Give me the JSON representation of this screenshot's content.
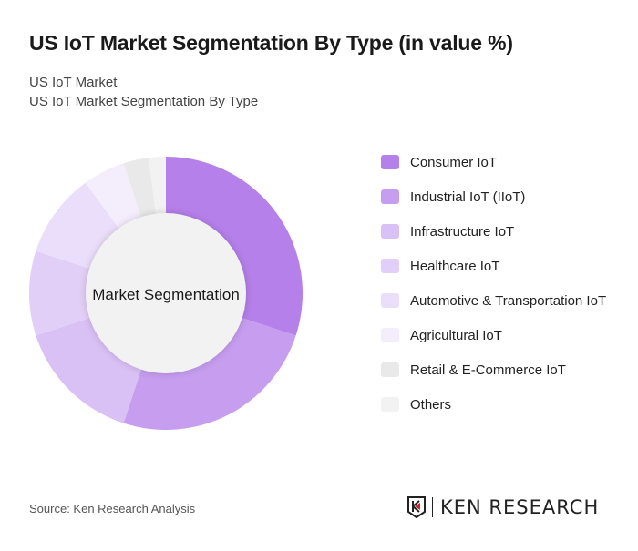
{
  "title": "US IoT Market Segmentation By Type (in value %)",
  "subtitle_lines": [
    "US IoT Market",
    "US IoT Market Segmentation By Type"
  ],
  "chart_data": {
    "type": "pie",
    "variant": "donut",
    "center_label": "Market Segmentation",
    "legend_position": "right",
    "categories": [
      "Consumer IoT",
      "Industrial IoT (IIoT)",
      "Infrastructure IoT",
      "Healthcare IoT",
      "Automotive & Transportation IoT",
      "Agricultural IoT",
      "Retail & E-Commerce IoT",
      "Others"
    ],
    "values": [
      30,
      25,
      15,
      10,
      10,
      5,
      3,
      2
    ],
    "colors": [
      "#b580ea",
      "#c69def",
      "#d9c0f5",
      "#e2cff7",
      "#ebdefa",
      "#f4edfc",
      "#e9e9e9",
      "#f2f2f2"
    ]
  },
  "footer": {
    "source": "Source: Ken Research Analysis",
    "logo_text": "KEN RESEARCH"
  }
}
